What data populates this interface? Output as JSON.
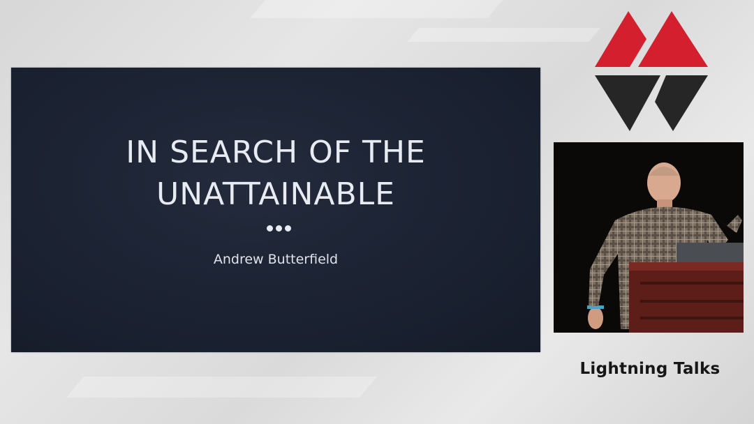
{
  "slide": {
    "title_line1": "IN SEARCH OF THE",
    "title_line2": "UNATTAINABLE",
    "separator": "•••",
    "author": "Andrew Butterfield"
  },
  "sidebar": {
    "logo_icon": "conference-logo-icon",
    "caption": "Lightning Talks",
    "speaker_video": "speaker-video"
  },
  "colors": {
    "logo_red": "#d31f2e",
    "logo_dark": "#262626",
    "slide_bg": "#1b2232",
    "slide_text": "#e8ecf2"
  }
}
